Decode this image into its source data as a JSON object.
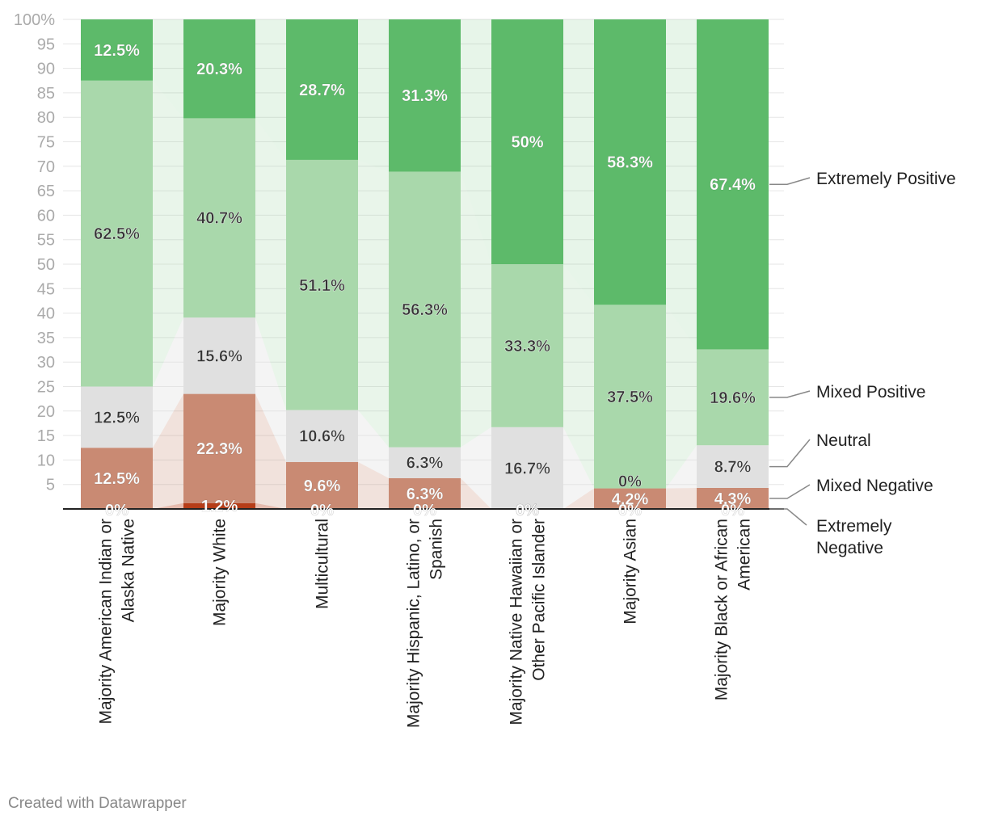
{
  "chart_data": {
    "type": "bar",
    "stacked": true,
    "title": "",
    "xlabel": "",
    "ylabel": "",
    "ylim": [
      0,
      100
    ],
    "ytick_labels": [
      "5",
      "10",
      "15",
      "20",
      "25",
      "30",
      "35",
      "40",
      "45",
      "50",
      "55",
      "60",
      "65",
      "70",
      "75",
      "80",
      "85",
      "90",
      "95",
      "100%"
    ],
    "categories": [
      [
        "Majority American Indian or",
        "Alaska Native"
      ],
      [
        "Majority White"
      ],
      [
        "Multicultural"
      ],
      [
        "Majority Hispanic, Latino, or",
        "Spanish"
      ],
      [
        "Majority Native Hawaiian or",
        "Other Pacific Islander"
      ],
      [
        "Majority Asian"
      ],
      [
        "Majority Black or African",
        "American"
      ]
    ],
    "series": [
      {
        "name": "Extremely Negative",
        "legend": [
          "Extremely",
          "Negative"
        ],
        "color": "#b63d18",
        "values": [
          0,
          1.2,
          0,
          0,
          0,
          0,
          0
        ],
        "labels": [
          "0%",
          "1.2%",
          "0%",
          "0%",
          "0%",
          "0%",
          "0%"
        ]
      },
      {
        "name": "Mixed Negative",
        "legend": [
          "Mixed Negative"
        ],
        "color": "#c98a73",
        "values": [
          12.5,
          22.3,
          9.6,
          6.3,
          0,
          4.2,
          4.3
        ],
        "labels": [
          "12.5%",
          "22.3%",
          "9.6%",
          "6.3%",
          "0%",
          "4.2%",
          "4.3%"
        ]
      },
      {
        "name": "Neutral",
        "legend": [
          "Neutral"
        ],
        "color": "#e0e0e0",
        "values": [
          12.5,
          15.6,
          10.6,
          6.3,
          16.7,
          0,
          8.7
        ],
        "labels": [
          "12.5%",
          "15.6%",
          "10.6%",
          "6.3%",
          "16.7%",
          "0%",
          "8.7%"
        ]
      },
      {
        "name": "Mixed Positive",
        "legend": [
          "Mixed Positive"
        ],
        "color": "#a9d8ab",
        "values": [
          62.5,
          40.7,
          51.1,
          56.3,
          33.3,
          37.5,
          19.6
        ],
        "labels": [
          "62.5%",
          "40.7%",
          "51.1%",
          "56.3%",
          "33.3%",
          "37.5%",
          "19.6%"
        ]
      },
      {
        "name": "Extremely Positive",
        "legend": [
          "Extremely Positive"
        ],
        "color": "#5dba6a",
        "values": [
          12.5,
          20.3,
          28.7,
          31.3,
          50,
          58.3,
          67.4
        ],
        "labels": [
          "12.5%",
          "20.3%",
          "28.7%",
          "31.3%",
          "50%",
          "58.3%",
          "67.4%"
        ]
      }
    ]
  },
  "footer": {
    "credit": "Created with Datawrapper"
  }
}
